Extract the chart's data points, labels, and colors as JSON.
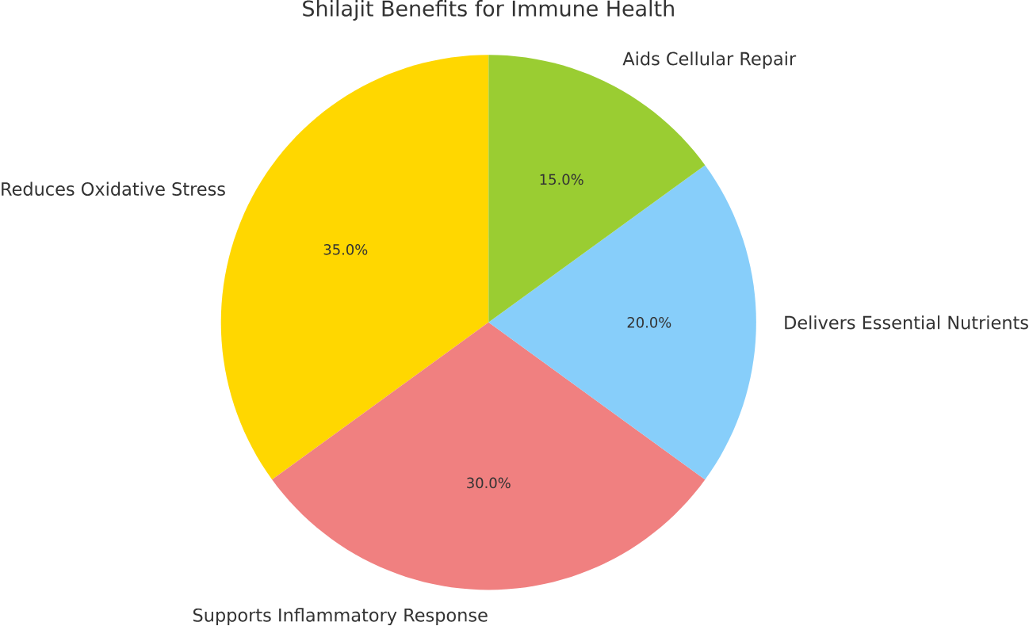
{
  "chart_data": {
    "type": "pie",
    "title": "Shilajit Benefits for Immune Health",
    "categories": [
      "Reduces Oxidative Stress",
      "Supports Inflammatory Response",
      "Delivers Essential Nutrients",
      "Aids Cellular Repair"
    ],
    "values": [
      35,
      30,
      20,
      15
    ],
    "value_labels": [
      "35.0%",
      "30.0%",
      "20.0%",
      "15.0%"
    ],
    "colors": [
      "#ffd700",
      "#f08080",
      "#87cefa",
      "#9acd32"
    ]
  }
}
